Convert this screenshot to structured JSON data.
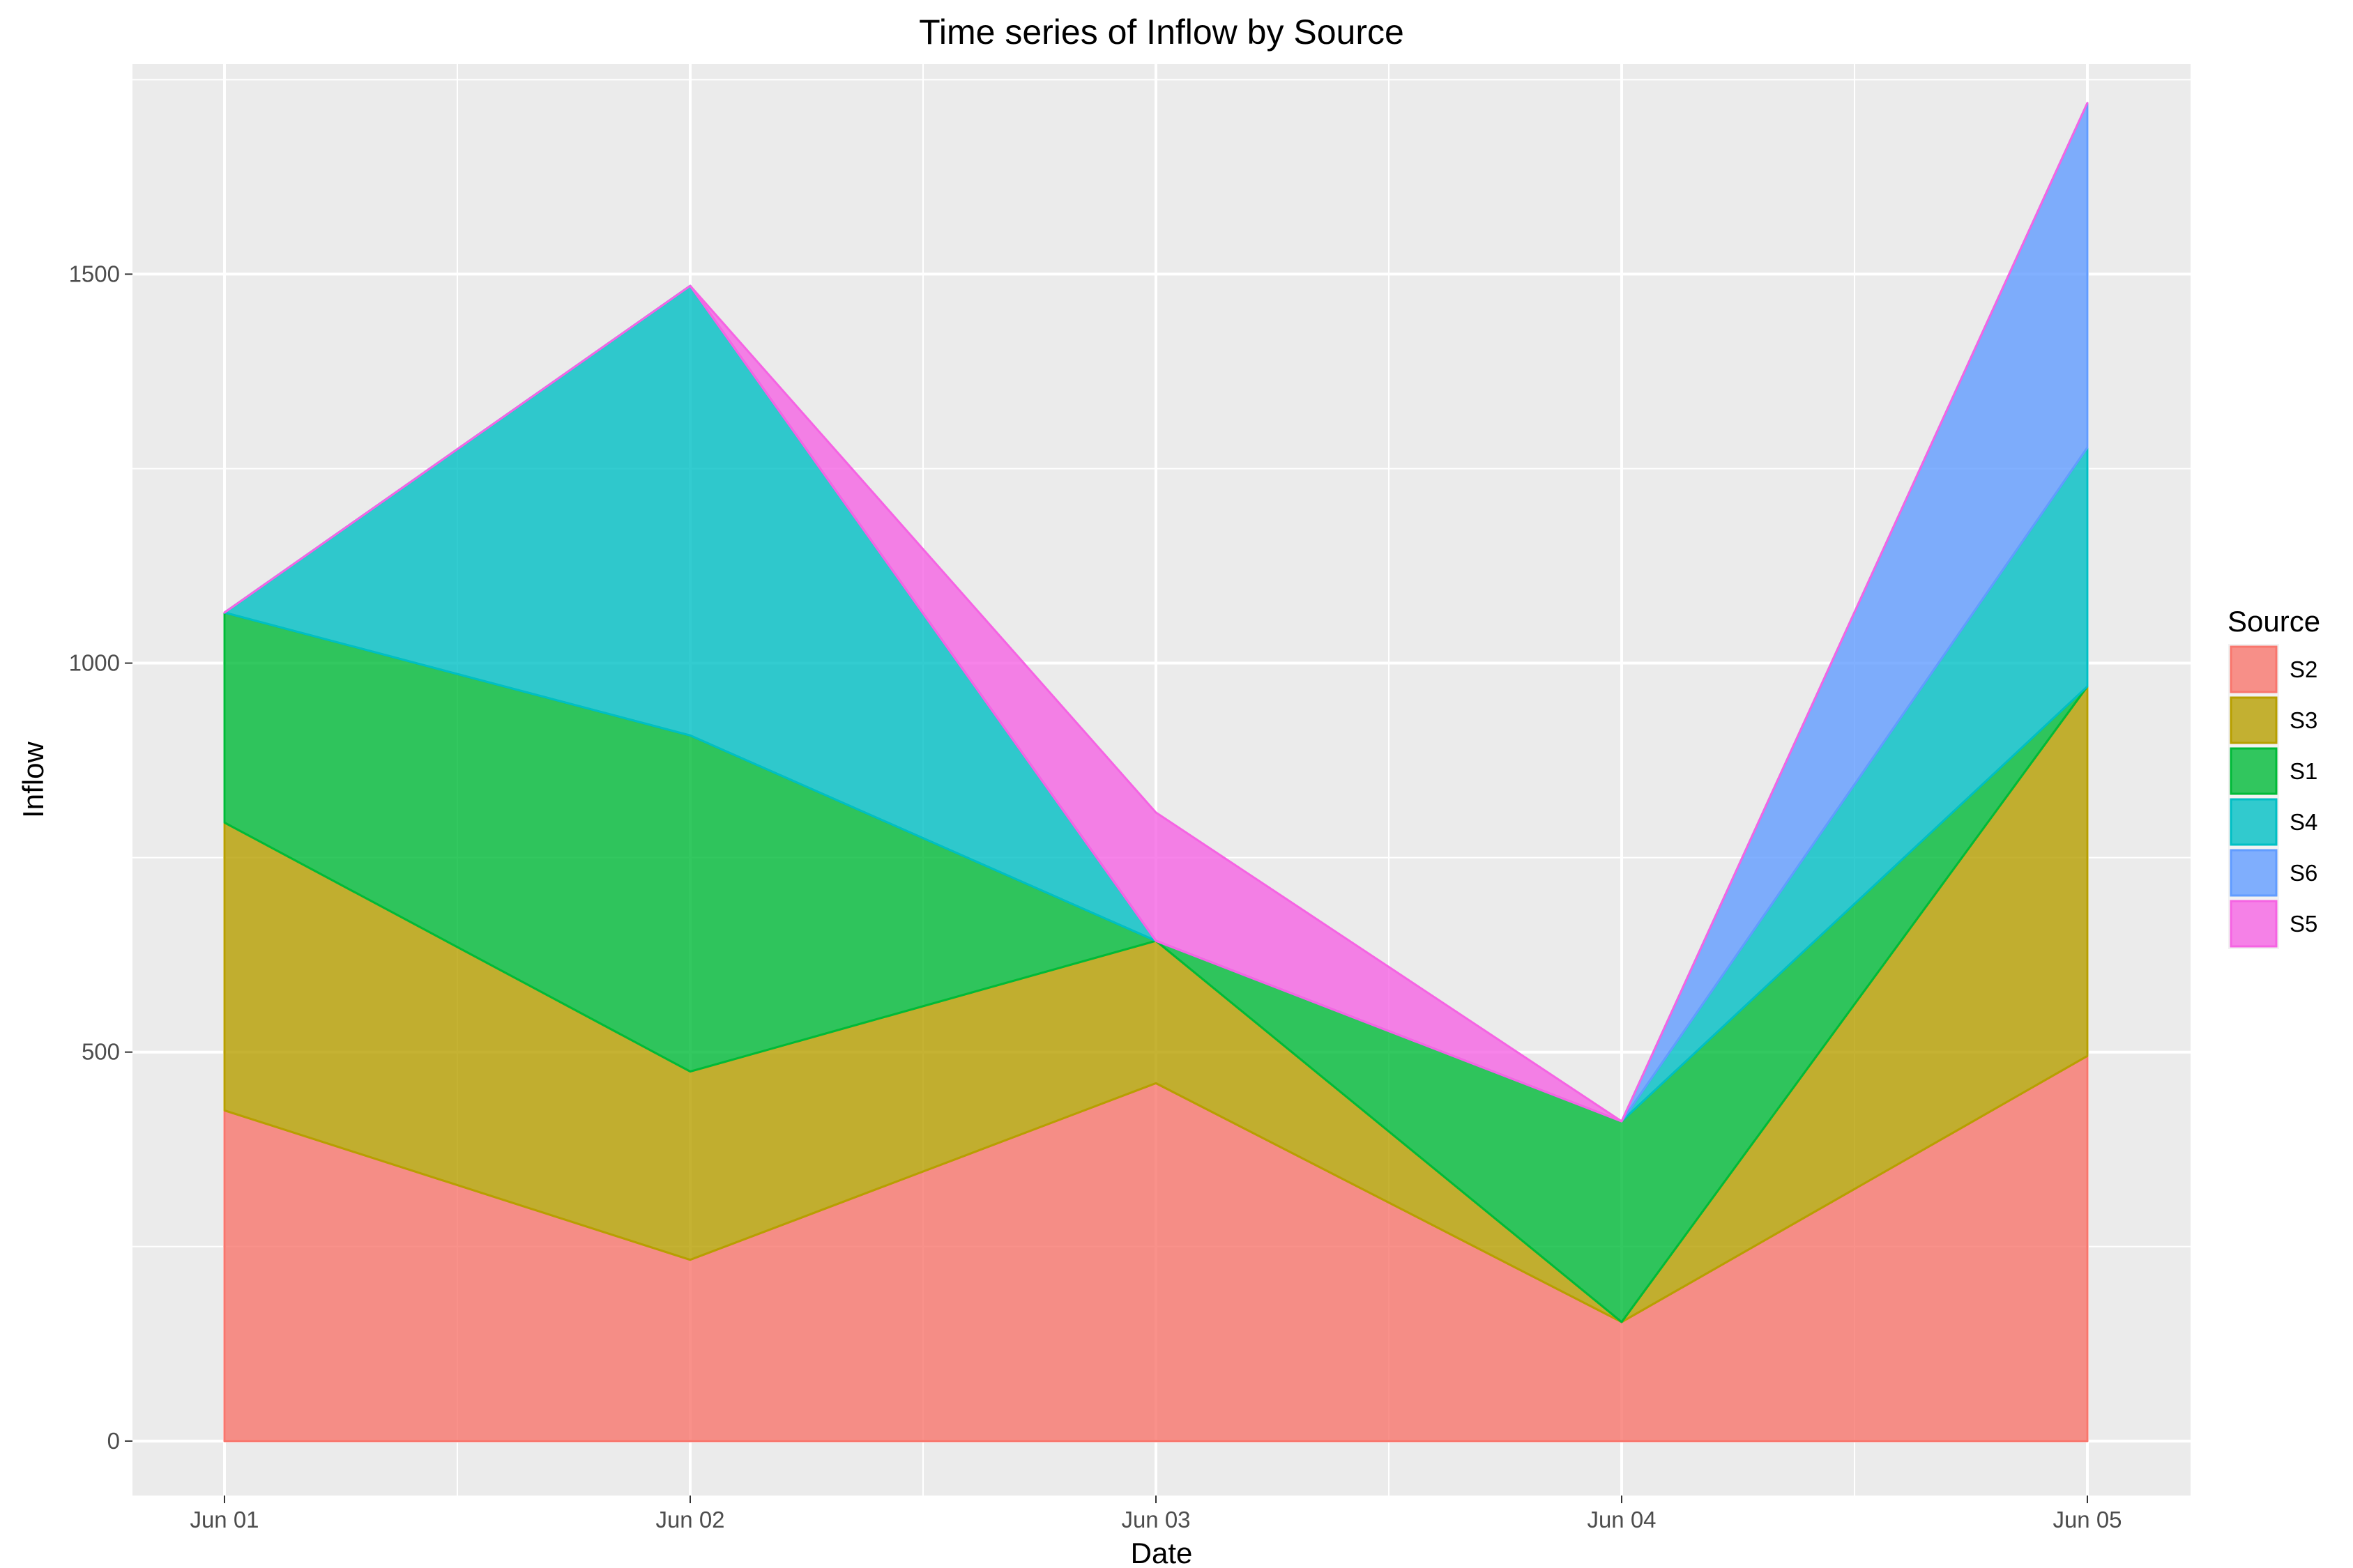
{
  "chart_data": {
    "type": "area",
    "stacked": true,
    "title": "Time series of Inflow by Source",
    "xlabel": "Date",
    "ylabel": "Inflow",
    "x": [
      "Jun 01",
      "Jun 02",
      "Jun 03",
      "Jun 04",
      "Jun 05"
    ],
    "ylim": [
      -70,
      1770
    ],
    "yticks": [
      0,
      500,
      1000,
      1500
    ],
    "grid": true,
    "legend": {
      "title": "Source",
      "position": "right"
    },
    "series": [
      {
        "name": "S2",
        "color": "#F8766D",
        "values": [
          425,
          233,
          460,
          153,
          495
        ]
      },
      {
        "name": "S3",
        "color": "#B79F00",
        "values": [
          370,
          242,
          183,
          0,
          475
        ]
      },
      {
        "name": "S1",
        "color": "#00BA38",
        "values": [
          270,
          432,
          0,
          258,
          0
        ]
      },
      {
        "name": "S4",
        "color": "#00BFC4",
        "values": [
          0,
          578,
          0,
          0,
          307
        ]
      },
      {
        "name": "S6",
        "color": "#619CFF",
        "values": [
          0,
          0,
          0,
          0,
          443
        ]
      },
      {
        "name": "S5",
        "color": "#F564E3",
        "values": [
          0,
          0,
          165,
          0,
          0
        ]
      }
    ]
  }
}
